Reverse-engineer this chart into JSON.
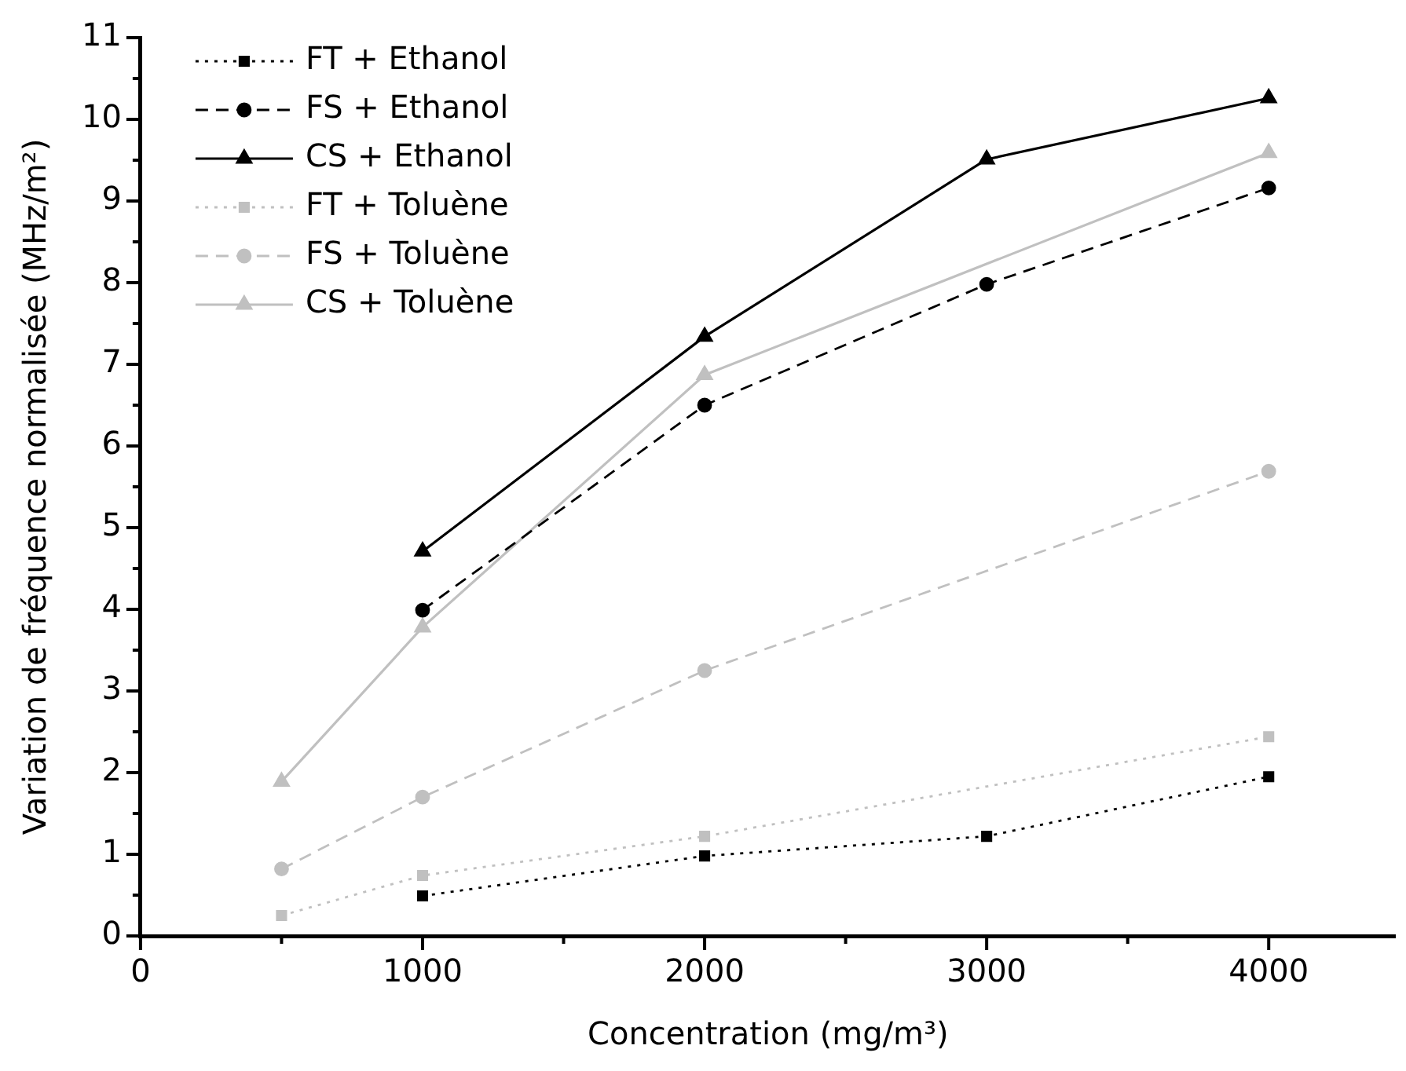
{
  "chart_data": {
    "type": "line",
    "xlabel": "Concentration (mg/m³)",
    "ylabel": "Variation de fréquence normalisée (MHz/m²)",
    "xlim": [
      0,
      4450
    ],
    "xticks": [
      0,
      {
        "value": 500,
        "label": null
      },
      1000,
      {
        "value": 1500,
        "label": null
      },
      2000,
      {
        "value": 2500,
        "label": null
      },
      3000,
      {
        "value": 3500,
        "label": null
      },
      4000
    ],
    "ylim": [
      0,
      11
    ],
    "yticks": [
      0,
      {
        "value": 0.5,
        "label": null
      },
      1,
      {
        "value": 1.5,
        "label": null
      },
      2,
      {
        "value": 2.5,
        "label": null
      },
      3,
      {
        "value": 3.5,
        "label": null
      },
      4,
      {
        "value": 4.5,
        "label": null
      },
      5,
      {
        "value": 5.5,
        "label": null
      },
      6,
      {
        "value": 6.5,
        "label": null
      },
      7,
      {
        "value": 7.5,
        "label": null
      },
      8,
      {
        "value": 8.5,
        "label": null
      },
      9,
      {
        "value": 9.5,
        "label": null
      },
      10,
      {
        "value": 10.5,
        "label": null
      },
      11
    ],
    "grid": false,
    "legend": "top left",
    "series": [
      {
        "name": "FT + Ethanol",
        "color": "#000000",
        "marker": "square",
        "line_style": "dotted",
        "x": [
          1000,
          2000,
          3000,
          4000
        ],
        "values": [
          0.49,
          0.98,
          1.22,
          1.95
        ]
      },
      {
        "name": "FS + Ethanol",
        "color": "#000000",
        "marker": "circle",
        "line_style": "dashed",
        "x": [
          1000,
          2000,
          3000,
          4000
        ],
        "values": [
          3.99,
          6.5,
          7.98,
          9.16
        ]
      },
      {
        "name": "CS + Ethanol",
        "color": "#000000",
        "marker": "triangle",
        "line_style": "solid",
        "x": [
          1000,
          2000,
          3000,
          4000
        ],
        "values": [
          4.71,
          7.34,
          9.51,
          10.26
        ]
      },
      {
        "name": "FT + Toluène",
        "color": "#c0c0c0",
        "marker": "square",
        "line_style": "dotted",
        "x": [
          500,
          1000,
          2000,
          4000
        ],
        "values": [
          0.25,
          0.74,
          1.22,
          2.44
        ]
      },
      {
        "name": "FS + Toluène",
        "color": "#c0c0c0",
        "marker": "circle",
        "line_style": "dashed",
        "x": [
          500,
          1000,
          2000,
          4000
        ],
        "values": [
          0.82,
          1.7,
          3.25,
          5.69
        ]
      },
      {
        "name": "CS + Toluène",
        "color": "#c0c0c0",
        "marker": "triangle",
        "line_style": "solid",
        "x": [
          500,
          1000,
          2000,
          4000
        ],
        "values": [
          1.89,
          3.78,
          6.87,
          9.59
        ]
      }
    ]
  }
}
